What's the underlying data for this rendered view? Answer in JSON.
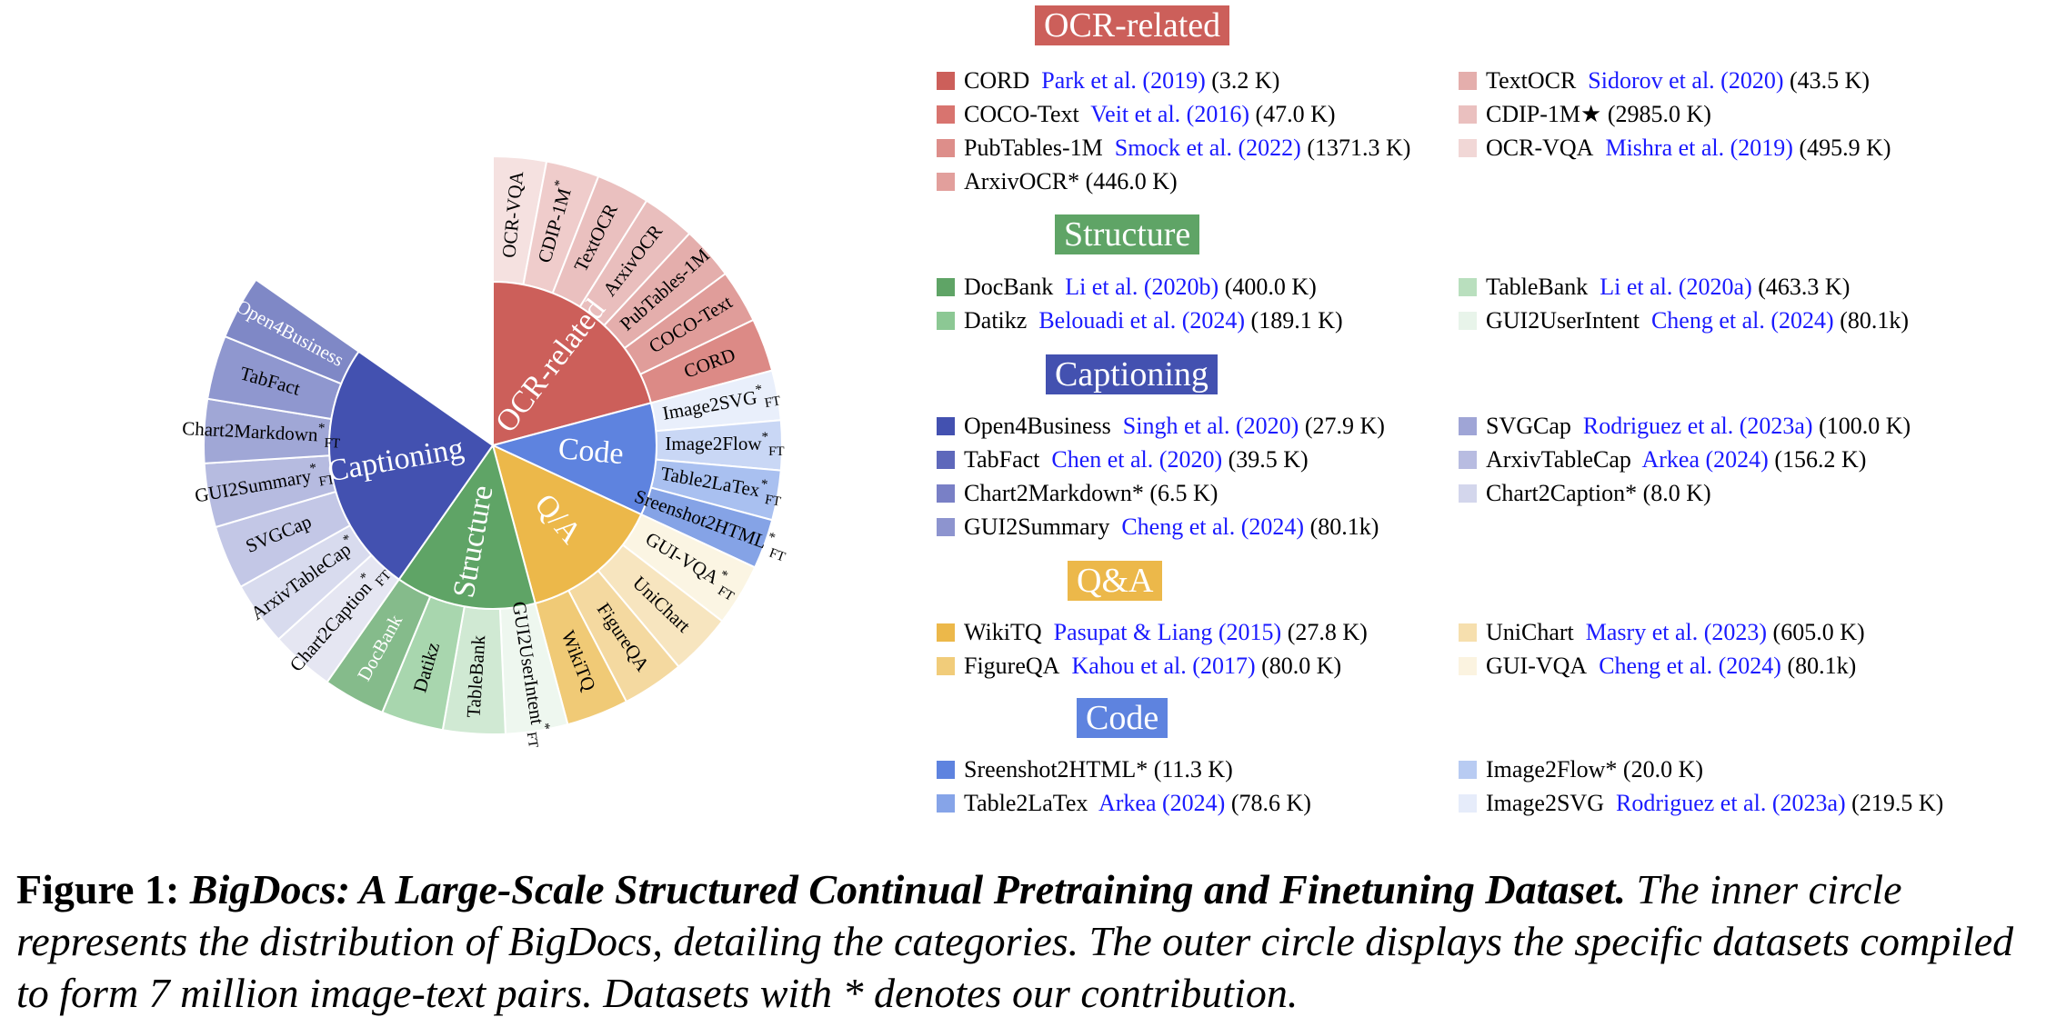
{
  "chart_data": {
    "type": "sunburst",
    "inner": [
      {
        "name": "OCR-related",
        "share": 0.2083,
        "color": "#cc5f5a",
        "text_color": "#ffffff"
      },
      {
        "name": "Code",
        "share": 0.1111,
        "color": "#5e83df",
        "text_color": "#ffffff"
      },
      {
        "name": "Q/A",
        "share": 0.1389,
        "color": "#ecb84a",
        "text_color": "#ffffff"
      },
      {
        "name": "Structure",
        "share": 0.1389,
        "color": "#5fa466",
        "text_color": "#ffffff"
      },
      {
        "name": "Captioning",
        "share": 0.25,
        "color": "#4351b0",
        "text_color": "#ffffff"
      }
    ],
    "outer": [
      {
        "label": "OCR-VQA",
        "sup": "",
        "sub": "",
        "parent": "OCR-related",
        "color": "#f5e1e0",
        "text_color": "#000000"
      },
      {
        "label": "CDIP-1M",
        "sup": "*",
        "sub": "",
        "parent": "OCR-related",
        "color": "#efcccb",
        "text_color": "#000000"
      },
      {
        "label": "TextOCR",
        "sup": "",
        "sub": "",
        "parent": "OCR-related",
        "color": "#eac0bf",
        "text_color": "#000000"
      },
      {
        "label": "ArxivOCR",
        "sup": "",
        "sub": "",
        "parent": "OCR-related",
        "color": "#e9bebd",
        "text_color": "#000000"
      },
      {
        "label": "PubTables-1M",
        "sup": "",
        "sub": "",
        "parent": "OCR-related",
        "color": "#e4aeac",
        "text_color": "#000000"
      },
      {
        "label": "COCO-Text",
        "sup": "",
        "sub": "",
        "parent": "OCR-related",
        "color": "#e09d9a",
        "text_color": "#000000"
      },
      {
        "label": "CORD",
        "sup": "",
        "sub": "",
        "parent": "OCR-related",
        "color": "#dc8a86",
        "text_color": "#000000"
      },
      {
        "label": "Image2SVG",
        "sup": "*",
        "sub": "FT",
        "parent": "Code",
        "color": "#e9effb",
        "text_color": "#000000"
      },
      {
        "label": "Image2Flow",
        "sup": "*",
        "sub": "FT",
        "parent": "Code",
        "color": "#c9d7f5",
        "text_color": "#000000"
      },
      {
        "label": "Table2LaTex",
        "sup": "*",
        "sub": "FT",
        "parent": "Code",
        "color": "#a9c0f0",
        "text_color": "#000000"
      },
      {
        "label": "Sreenshot2HTML",
        "sup": "*",
        "sub": "FT",
        "parent": "Code",
        "color": "#85a3e6",
        "text_color": "#000000"
      },
      {
        "label": "GUI-VQA",
        "sup": "*",
        "sub": "FT",
        "parent": "Q/A",
        "color": "#fbf5e3",
        "text_color": "#000000"
      },
      {
        "label": "UniChart",
        "sup": "",
        "sub": "",
        "parent": "Q/A",
        "color": "#f7e5bf",
        "text_color": "#000000"
      },
      {
        "label": "FigureQA",
        "sup": "",
        "sub": "",
        "parent": "Q/A",
        "color": "#f4d9a0",
        "text_color": "#000000"
      },
      {
        "label": "WikiTQ",
        "sup": "",
        "sub": "",
        "parent": "Q/A",
        "color": "#f0ca76",
        "text_color": "#000000"
      },
      {
        "label": "GUI2UserIntent",
        "sup": "*",
        "sub": "FT",
        "parent": "Structure",
        "color": "#eef7ef",
        "text_color": "#000000"
      },
      {
        "label": "TableBank",
        "sup": "",
        "sub": "",
        "parent": "Structure",
        "color": "#d0e9d3",
        "text_color": "#000000"
      },
      {
        "label": "Datikz",
        "sup": "",
        "sub": "",
        "parent": "Structure",
        "color": "#a8d6ae",
        "text_color": "#000000"
      },
      {
        "label": "DocBank",
        "sup": "",
        "sub": "",
        "parent": "Structure",
        "color": "#85bb8b",
        "text_color": "#ffffff"
      },
      {
        "label": "Chart2Caption",
        "sup": "*",
        "sub": "FT",
        "parent": "Captioning",
        "color": "#e5e6f2",
        "text_color": "#000000"
      },
      {
        "label": "ArxivTableCap",
        "sup": "*",
        "sub": "",
        "parent": "Captioning",
        "color": "#d8dbee",
        "text_color": "#000000"
      },
      {
        "label": "SVGCap",
        "sup": "",
        "sub": "",
        "parent": "Captioning",
        "color": "#c3c7e6",
        "text_color": "#000000"
      },
      {
        "label": "GUI2Summary",
        "sup": "*",
        "sub": "FT",
        "parent": "Captioning",
        "color": "#b6bbe0",
        "text_color": "#000000"
      },
      {
        "label": "Chart2Markdown",
        "sup": "*",
        "sub": "FT",
        "parent": "Captioning",
        "color": "#a0a7d6",
        "text_color": "#000000"
      },
      {
        "label": "TabFact",
        "sup": "",
        "sub": "",
        "parent": "Captioning",
        "color": "#8f97cf",
        "text_color": "#000000"
      },
      {
        "label": "Open4Business",
        "sup": "",
        "sub": "",
        "parent": "Captioning",
        "color": "#7f88c6",
        "text_color": "#ffffff"
      }
    ]
  },
  "legend": [
    {
      "title": "OCR-related",
      "color": "#cc5f5a",
      "entries": [
        {
          "name": "CORD",
          "cite": "Park et al. (2019)",
          "size": "(3.2 K)",
          "color": "#cc5f5a"
        },
        {
          "name": "TextOCR",
          "cite": "Sidorov et al. (2020)",
          "size": "(43.5 K)",
          "color": "#e4aeac"
        },
        {
          "name": "COCO-Text",
          "cite": "Veit et al. (2016)",
          "size": "(47.0 K)",
          "color": "#d8746f"
        },
        {
          "name": "CDIP-1M★",
          "cite": "",
          "size": "(2985.0 K)",
          "color": "#eac0bf"
        },
        {
          "name": "PubTables-1M",
          "cite": "Smock et al. (2022)",
          "size": "(1371.3 K)",
          "color": "#dd8e8a"
        },
        {
          "name": "OCR-VQA",
          "cite": "Mishra et al. (2019)",
          "size": "(495.9 K)",
          "color": "#f1d7d6"
        },
        {
          "name": "ArxivOCR*",
          "cite": "",
          "size": "(446.0 K)",
          "color": "#e29f9c"
        }
      ]
    },
    {
      "title": "Structure",
      "color": "#5fa466",
      "entries": [
        {
          "name": "DocBank",
          "cite": "Li et al. (2020b)",
          "size": "(400.0 K)",
          "color": "#5fa466"
        },
        {
          "name": "TableBank",
          "cite": "Li et al. (2020a)",
          "size": "(463.3 K)",
          "color": "#b9dfbe"
        },
        {
          "name": "Datikz",
          "cite": "Belouadi et al. (2024)",
          "size": "(189.1 K)",
          "color": "#8cc894"
        },
        {
          "name": "GUI2UserIntent",
          "cite": "Cheng et al. (2024)",
          "size": "(80.1k)",
          "color": "#e8f4ea"
        }
      ]
    },
    {
      "title": "Captioning",
      "color": "#4351b0",
      "entries": [
        {
          "name": "Open4Business",
          "cite": "Singh et al. (2020)",
          "size": "(27.9 K)",
          "color": "#4351b0"
        },
        {
          "name": "SVGCap",
          "cite": "Rodriguez et al. (2023a)",
          "size": "(100.0 K)",
          "color": "#9fa5d6"
        },
        {
          "name": "TabFact",
          "cite": "Chen et al. (2020)",
          "size": "(39.5 K)",
          "color": "#5e68bb"
        },
        {
          "name": "ArxivTableCap",
          "cite": "Arkea (2024)",
          "size": "(156.2 K)",
          "color": "#b8bce1"
        },
        {
          "name": "Chart2Markdown*",
          "cite": "",
          "size": "(6.5 K)",
          "color": "#7980c6"
        },
        {
          "name": "Chart2Caption*",
          "cite": "",
          "size": "(8.0 K)",
          "color": "#d3d6ec"
        },
        {
          "name": "GUI2Summary",
          "cite": "Cheng et al. (2024)",
          "size": "(80.1k)",
          "color": "#8d94cf"
        }
      ]
    },
    {
      "title": "Q&A",
      "color": "#ecb84a",
      "entries": [
        {
          "name": "WikiTQ",
          "cite": "Pasupat & Liang (2015)",
          "size": "(27.8 K)",
          "color": "#ecb84a"
        },
        {
          "name": "UniChart",
          "cite": "Masry et al. (2023)",
          "size": "(605.0 K)",
          "color": "#f6dfae"
        },
        {
          "name": "FigureQA",
          "cite": "Kahou et al. (2017)",
          "size": "(80.0 K)",
          "color": "#f1cc7a"
        },
        {
          "name": "GUI-VQA",
          "cite": "Cheng et al. (2024)",
          "size": "(80.1k)",
          "color": "#fbf3e0"
        }
      ]
    },
    {
      "title": "Code",
      "color": "#5e83df",
      "entries": [
        {
          "name": "Sreenshot2HTML*",
          "cite": "",
          "size": "(11.3 K)",
          "color": "#5e83df"
        },
        {
          "name": "Image2Flow*",
          "cite": "",
          "size": "(20.0 K)",
          "color": "#b8cbf2"
        },
        {
          "name": "Table2LaTex",
          "cite": "Arkea (2024)",
          "size": "(78.6 K)",
          "color": "#86a4e8"
        },
        {
          "name": "Image2SVG",
          "cite": "Rodriguez et al. (2023a)",
          "size": "(219.5 K)",
          "color": "#e6ecfa"
        }
      ]
    }
  ],
  "caption": {
    "figure_label": "Figure 1:",
    "title": "BigDocs: A Large-Scale Structured Continual Pretraining and Finetuning Dataset.",
    "text": "The inner circle represents the distribution of BigDocs, detailing the categories. The outer circle displays the specific datasets compiled to form 7 million image-text pairs. Datasets with * denotes our contribution."
  }
}
